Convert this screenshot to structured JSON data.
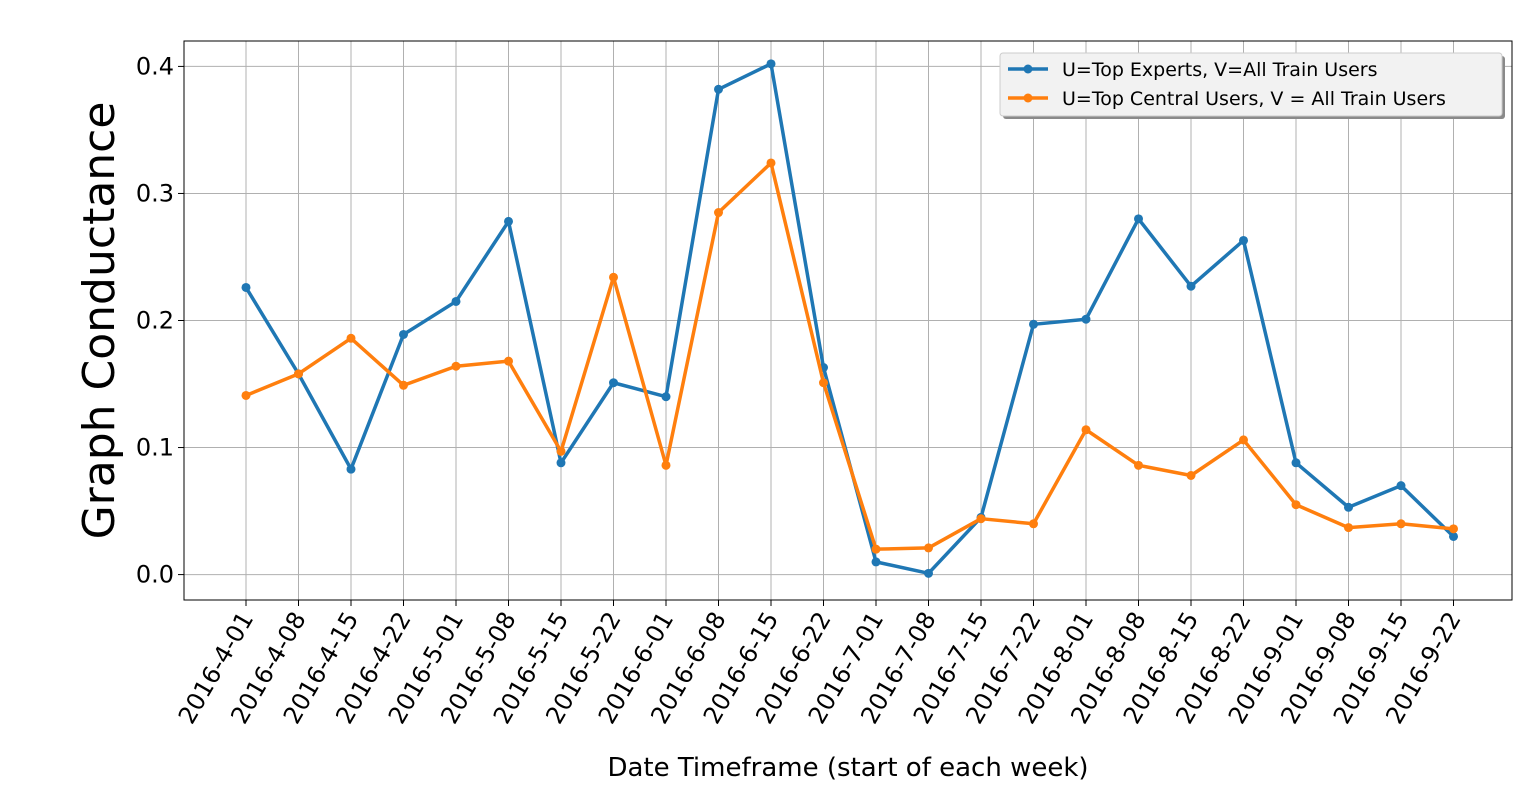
{
  "chart_data": {
    "type": "line",
    "title": "",
    "xlabel": "Date Timeframe (start of each week)",
    "ylabel": "Graph Conductance",
    "ylim": [
      -0.02,
      0.42
    ],
    "yticks": [
      "0.0",
      "0.1",
      "0.2",
      "0.3",
      "0.4"
    ],
    "grid": true,
    "legend_position": "top-right",
    "categories": [
      "2016-4-01",
      "2016-4-08",
      "2016-4-15",
      "2016-4-22",
      "2016-5-01",
      "2016-5-08",
      "2016-5-15",
      "2016-5-22",
      "2016-6-01",
      "2016-6-08",
      "2016-6-15",
      "2016-6-22",
      "2016-7-01",
      "2016-7-08",
      "2016-7-15",
      "2016-7-22",
      "2016-8-01",
      "2016-8-08",
      "2016-8-15",
      "2016-8-22",
      "2016-9-01",
      "2016-9-08",
      "2016-9-15",
      "2016-9-22"
    ],
    "series": [
      {
        "name": "U=Top Experts, V=All Train Users",
        "color": "#1f77b4",
        "values": [
          0.226,
          0.158,
          0.083,
          0.189,
          0.215,
          0.278,
          0.088,
          0.151,
          0.14,
          0.382,
          0.402,
          0.163,
          0.01,
          0.001,
          0.045,
          0.197,
          0.201,
          0.28,
          0.227,
          0.263,
          0.088,
          0.053,
          0.07,
          0.03
        ]
      },
      {
        "name": "U=Top Central Users, V = All Train Users",
        "color": "#ff7f0e",
        "values": [
          0.141,
          0.158,
          0.186,
          0.149,
          0.164,
          0.168,
          0.097,
          0.234,
          0.086,
          0.285,
          0.324,
          0.151,
          0.02,
          0.021,
          0.044,
          0.04,
          0.114,
          0.086,
          0.078,
          0.106,
          0.055,
          0.037,
          0.04,
          0.036
        ]
      }
    ]
  }
}
